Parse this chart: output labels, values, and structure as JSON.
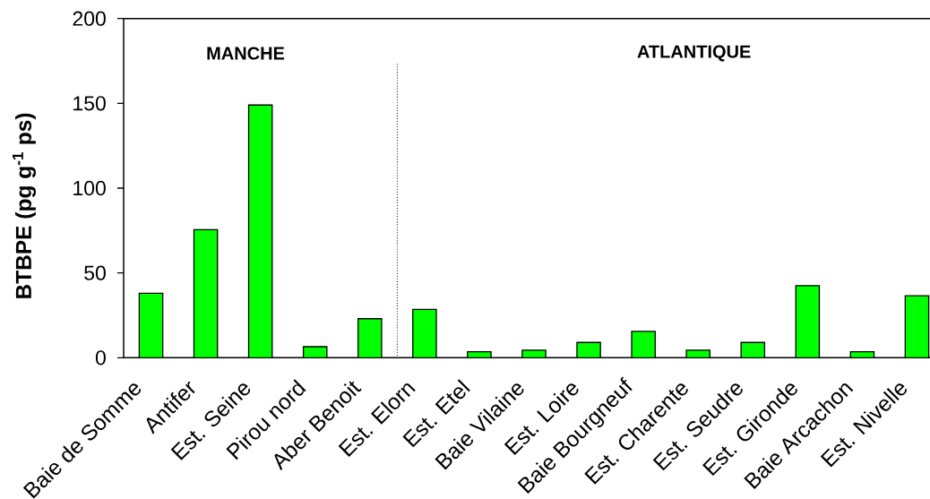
{
  "chart_data": {
    "type": "bar",
    "ylabel": "BTBPE (pg g$^{-1}$ ps)",
    "categories": [
      "Baie de Somme",
      "Antifer",
      "Est. Seine",
      "Pirou nord",
      "Aber Benoit",
      "Est. Elorn",
      "Est. Etel",
      "Baie Vilaine",
      "Est. Loire",
      "Baie Bourgneuf",
      "Est. Charente",
      "Est. Seudre",
      "Est. Gironde",
      "Baie Arcachon",
      "Est. Nivelle"
    ],
    "values": [
      38,
      75.5,
      149,
      6.5,
      23,
      28.5,
      3.5,
      4.5,
      9,
      15.5,
      4.5,
      9,
      42.5,
      3.5,
      36.5
    ],
    "color": "#00ff00",
    "ylim": [
      0,
      200
    ],
    "yticks": [
      0,
      50,
      100,
      150,
      200
    ],
    "annotations": [
      "MANCHE",
      "ATLANTIQUE"
    ]
  }
}
